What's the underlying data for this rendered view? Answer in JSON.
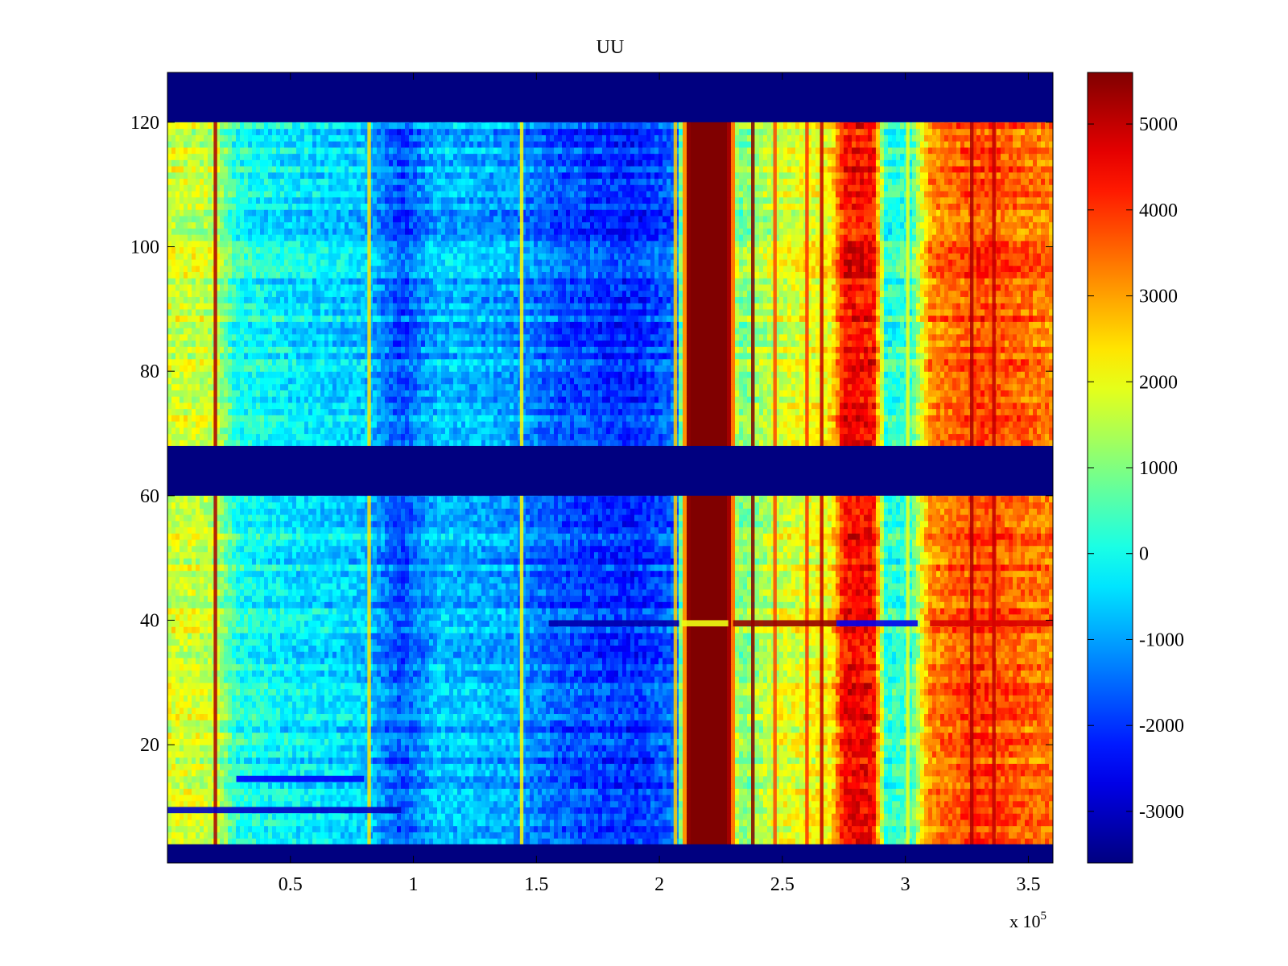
{
  "chart_data": {
    "type": "heatmap",
    "title": "UU",
    "xlabel": "",
    "ylabel": "",
    "x_exponent_label": "x 10",
    "x_exponent": "5",
    "xlim": [
      0,
      3.6
    ],
    "ylim": [
      1,
      128
    ],
    "x_ticks": [
      0.5,
      1,
      1.5,
      2,
      2.5,
      3,
      3.5
    ],
    "x_tick_labels": [
      "0.5",
      "1",
      "1.5",
      "2",
      "2.5",
      "3",
      "3.5"
    ],
    "y_ticks": [
      20,
      40,
      60,
      80,
      100,
      120
    ],
    "y_tick_labels": [
      "20",
      "40",
      "60",
      "80",
      "100",
      "120"
    ],
    "colorbar": {
      "colormap": "jet",
      "clim": [
        -3600,
        5600
      ],
      "ticks": [
        -3000,
        -2000,
        -1000,
        0,
        1000,
        2000,
        3000,
        4000,
        5000
      ],
      "tick_labels": [
        "-3000",
        "-2000",
        "-1000",
        "0",
        "1000",
        "2000",
        "3000",
        "4000",
        "5000"
      ]
    },
    "masked_rows": [
      [
        1,
        4
      ],
      [
        61,
        68
      ],
      [
        121,
        128
      ]
    ],
    "column_profile": [
      {
        "x": 0.0,
        "value": 1800
      },
      {
        "x": 0.2,
        "value": 1600
      },
      {
        "x": 0.28,
        "value": 100
      },
      {
        "x": 0.5,
        "value": -300
      },
      {
        "x": 0.8,
        "value": -600
      },
      {
        "x": 0.95,
        "value": -1800
      },
      {
        "x": 1.1,
        "value": -700
      },
      {
        "x": 1.4,
        "value": -1000
      },
      {
        "x": 1.6,
        "value": -1700
      },
      {
        "x": 1.9,
        "value": -2100
      },
      {
        "x": 2.07,
        "value": -1500
      },
      {
        "x": 2.12,
        "value": 5600
      },
      {
        "x": 2.28,
        "value": 5600
      },
      {
        "x": 2.32,
        "value": 900
      },
      {
        "x": 2.5,
        "value": 1800
      },
      {
        "x": 2.7,
        "value": 2200
      },
      {
        "x": 2.75,
        "value": 4400
      },
      {
        "x": 2.87,
        "value": 4400
      },
      {
        "x": 2.92,
        "value": 200
      },
      {
        "x": 3.02,
        "value": 300
      },
      {
        "x": 3.1,
        "value": 3200
      },
      {
        "x": 3.3,
        "value": 3900
      },
      {
        "x": 3.6,
        "value": 3300
      }
    ],
    "stripes": [
      {
        "x": 0.195,
        "value": 5200
      },
      {
        "x": 0.82,
        "value": 2400
      },
      {
        "x": 1.44,
        "value": 2200
      },
      {
        "x": 2.065,
        "value": 2600
      },
      {
        "x": 2.38,
        "value": 5600
      },
      {
        "x": 2.47,
        "value": 3800
      },
      {
        "x": 2.6,
        "value": 4000
      },
      {
        "x": 2.66,
        "value": 5000
      },
      {
        "x": 3.01,
        "value": 2000
      },
      {
        "x": 3.27,
        "value": 5200
      },
      {
        "x": 3.36,
        "value": 5000
      }
    ],
    "row_anomalies": [
      {
        "y": 39,
        "x_range": [
          1.55,
          2.08
        ],
        "value": -3200
      },
      {
        "y": 39,
        "x_range": [
          2.09,
          2.28
        ],
        "value": 2000
      },
      {
        "y": 39,
        "x_range": [
          2.3,
          2.72
        ],
        "value": 5400
      },
      {
        "y": 39,
        "x_range": [
          2.72,
          3.05
        ],
        "value": -2600
      },
      {
        "y": 39,
        "x_range": [
          3.1,
          3.6
        ],
        "value": 4800
      },
      {
        "y": 9,
        "x_range": [
          0.0,
          0.95
        ],
        "value": -3000
      },
      {
        "y": 14,
        "x_range": [
          0.28,
          0.8
        ],
        "value": -2500
      }
    ]
  }
}
